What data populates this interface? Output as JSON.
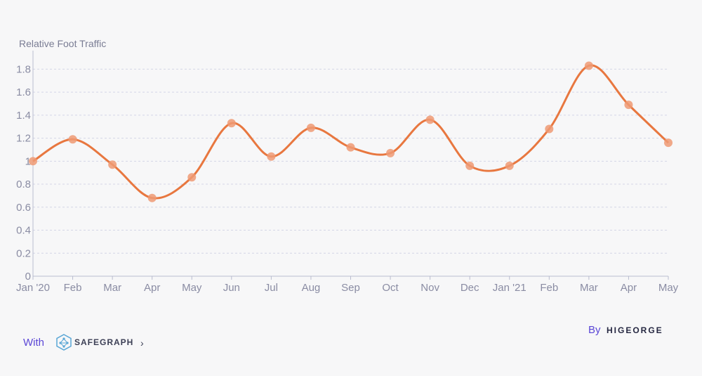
{
  "chart_data": {
    "type": "line",
    "ylabel": "Relative Foot Traffic",
    "categories": [
      "Jan '20",
      "Feb",
      "Mar",
      "Apr",
      "May",
      "Jun",
      "Jul",
      "Aug",
      "Sep",
      "Oct",
      "Nov",
      "Dec",
      "Jan '21",
      "Feb",
      "Mar",
      "Apr",
      "May"
    ],
    "series": [
      {
        "values": [
          1.0,
          1.19,
          0.97,
          0.68,
          0.86,
          1.33,
          1.04,
          1.29,
          1.12,
          1.07,
          1.36,
          0.96,
          0.96,
          1.28,
          1.83,
          1.49,
          1.16
        ]
      }
    ],
    "yticks": [
      "0",
      "0.2",
      "0.4",
      "0.6",
      "0.8",
      "1",
      "1.2",
      "1.4",
      "1.6",
      "1.8"
    ],
    "ylim": [
      0,
      1.9
    ],
    "grid": true,
    "colors": {
      "line": "#e8773f",
      "marker": "#ef9a74"
    }
  },
  "footer": {
    "with_label": "With",
    "safegraph_logo": "SAFEGRAPH",
    "chevron": "›",
    "by_label": "By",
    "higeorge_logo": "HIGEORGE"
  },
  "icons": {
    "safegraph": "safegraph-logo-icon",
    "chevron": "chevron-right-icon"
  }
}
